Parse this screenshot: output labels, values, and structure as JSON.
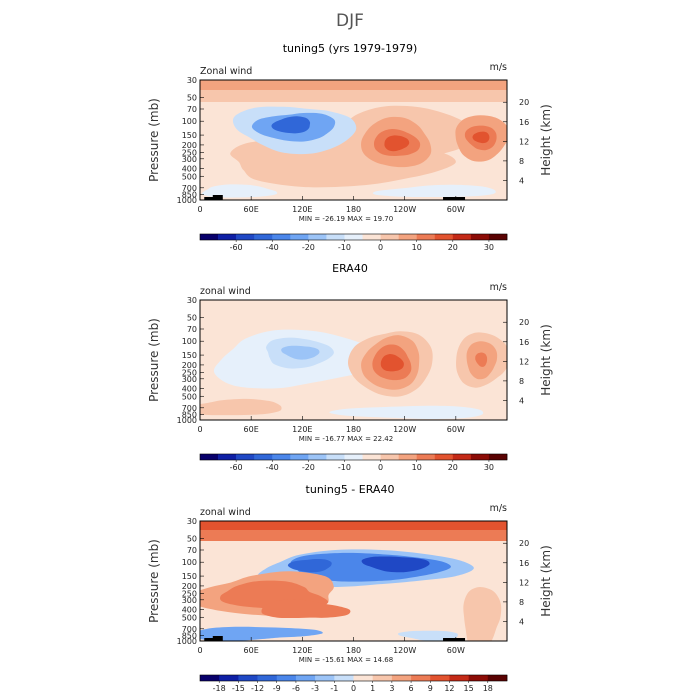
{
  "figure": {
    "title": "DJF"
  },
  "chart_data": [
    {
      "type": "heatmap",
      "title": "tuning5 (yrs 1979-1979)",
      "left_label": "Zonal wind",
      "units": "m/s",
      "ylabel": "Pressure (mb)",
      "ylabel_right": "Height (km)",
      "x_tick_labels": [
        "0",
        "60E",
        "120E",
        "180",
        "120W",
        "60W"
      ],
      "x_tick_positions_deg": [
        0,
        60,
        120,
        180,
        240,
        300
      ],
      "xlim": [
        0,
        360
      ],
      "y_tick_labels": [
        "30",
        "50",
        "70",
        "100",
        "150",
        "200",
        "250",
        "300",
        "400",
        "500",
        "700",
        "850",
        "1000"
      ],
      "y_tick_values": [
        30,
        50,
        70,
        100,
        150,
        200,
        250,
        300,
        400,
        500,
        700,
        850,
        1000
      ],
      "ylim": [
        1000,
        30
      ],
      "y_scale": "log",
      "height_tick_labels": [
        "4",
        "8",
        "12",
        "16",
        "20"
      ],
      "height_tick_values_km": [
        4,
        8,
        12,
        16,
        20
      ],
      "stats_label": "MIN = -26.19   MAX =  19.70",
      "min": -26.19,
      "max": 19.7,
      "colorbar_levels": [
        -70,
        -60,
        -50,
        -40,
        -30,
        -20,
        -15,
        -10,
        -5,
        0,
        5,
        10,
        15,
        20,
        25,
        30
      ],
      "colorbar_labels": [
        "-60",
        "-40",
        "-20",
        "-10",
        "0",
        "10",
        "20",
        "30"
      ],
      "colors": [
        "#08006b",
        "#0e1fa5",
        "#1f48c5",
        "#3067d8",
        "#4b86ea",
        "#6fa5f3",
        "#9cc4f7",
        "#c8dff9",
        "#e6f0fb",
        "#fbe4d6",
        "#f7c6ac",
        "#f3a37f",
        "#ec7b55",
        "#e2532f",
        "#c42a17",
        "#8c0c06",
        "#5a0202"
      ],
      "features": [
        {
          "name": "stratosphere-westerly",
          "lon": [
            0,
            360
          ],
          "p": [
            30,
            55
          ],
          "value": 12
        },
        {
          "name": "upper-easterly-jet",
          "lon": 110,
          "p": 110,
          "value": -26.19
        },
        {
          "name": "pacific-jet",
          "lon": 225,
          "p": 190,
          "value": 19.7
        },
        {
          "name": "atlantic-jet",
          "lon": 330,
          "p": 160,
          "value": 14
        }
      ]
    },
    {
      "type": "heatmap",
      "title": "ERA40",
      "left_label": "zonal wind",
      "units": "m/s",
      "ylabel": "Pressure (mb)",
      "ylabel_right": "Height (km)",
      "x_tick_labels": [
        "0",
        "60E",
        "120E",
        "180",
        "120W",
        "60W"
      ],
      "x_tick_positions_deg": [
        0,
        60,
        120,
        180,
        240,
        300
      ],
      "xlim": [
        0,
        360
      ],
      "y_tick_labels": [
        "30",
        "50",
        "70",
        "100",
        "150",
        "200",
        "250",
        "300",
        "400",
        "500",
        "700",
        "850",
        "1000"
      ],
      "y_tick_values": [
        30,
        50,
        70,
        100,
        150,
        200,
        250,
        300,
        400,
        500,
        700,
        850,
        1000
      ],
      "ylim": [
        1000,
        30
      ],
      "y_scale": "log",
      "height_tick_labels": [
        "4",
        "8",
        "12",
        "16",
        "20"
      ],
      "height_tick_values_km": [
        4,
        8,
        12,
        16,
        20
      ],
      "stats_label": "MIN = -16.77   MAX =  22.42",
      "min": -16.77,
      "max": 22.42,
      "colorbar_levels": [
        -70,
        -60,
        -50,
        -40,
        -30,
        -20,
        -15,
        -10,
        -5,
        0,
        5,
        10,
        15,
        20,
        25,
        30
      ],
      "colorbar_labels": [
        "-60",
        "-40",
        "-20",
        "-10",
        "0",
        "10",
        "20",
        "30"
      ],
      "colors": [
        "#08006b",
        "#0e1fa5",
        "#1f48c5",
        "#3067d8",
        "#4b86ea",
        "#6fa5f3",
        "#9cc4f7",
        "#c8dff9",
        "#e6f0fb",
        "#fbe4d6",
        "#f7c6ac",
        "#f3a37f",
        "#ec7b55",
        "#e2532f",
        "#c42a17",
        "#8c0c06",
        "#5a0202"
      ],
      "features": [
        {
          "name": "upper-easterly",
          "lon": 115,
          "p": 140,
          "value": -16.77
        },
        {
          "name": "pacific-jet",
          "lon": 225,
          "p": 190,
          "value": 22.42
        },
        {
          "name": "atlantic-jet",
          "lon": 330,
          "p": 170,
          "value": 15
        }
      ]
    },
    {
      "type": "heatmap",
      "title": "tuning5 - ERA40",
      "left_label": "zonal wind",
      "units": "m/s",
      "ylabel": "Pressure (mb)",
      "ylabel_right": "Height (km)",
      "x_tick_labels": [
        "0",
        "60E",
        "120E",
        "180",
        "120W",
        "60W"
      ],
      "x_tick_positions_deg": [
        0,
        60,
        120,
        180,
        240,
        300
      ],
      "xlim": [
        0,
        360
      ],
      "y_tick_labels": [
        "30",
        "50",
        "70",
        "100",
        "150",
        "200",
        "250",
        "300",
        "400",
        "500",
        "700",
        "850",
        "1000"
      ],
      "y_tick_values": [
        30,
        50,
        70,
        100,
        150,
        200,
        250,
        300,
        400,
        500,
        700,
        850,
        1000
      ],
      "ylim": [
        1000,
        30
      ],
      "y_scale": "log",
      "height_tick_labels": [
        "4",
        "8",
        "12",
        "16",
        "20"
      ],
      "height_tick_values_km": [
        4,
        8,
        12,
        16,
        20
      ],
      "stats_label": "MIN = -15.61   MAX =  14.68",
      "min": -15.61,
      "max": 14.68,
      "colorbar_levels": [
        -18,
        -15,
        -12,
        -9,
        -6,
        -3,
        -1,
        0,
        1,
        3,
        6,
        9,
        12,
        15,
        18
      ],
      "colorbar_labels": [
        "-18",
        "-15",
        "-12",
        "-9",
        "-6",
        "-3",
        "-1",
        "0",
        "1",
        "3",
        "6",
        "9",
        "12",
        "15",
        "18"
      ],
      "colors": [
        "#08006b",
        "#0e1fa5",
        "#1f48c5",
        "#3067d8",
        "#4b86ea",
        "#6fa5f3",
        "#9cc4f7",
        "#c8dff9",
        "#fbe4d6",
        "#f7c6ac",
        "#f3a37f",
        "#ec7b55",
        "#e2532f",
        "#c42a17",
        "#8c0c06",
        "#5a0202"
      ],
      "features": [
        {
          "name": "stratosphere-positive",
          "lon": [
            0,
            360
          ],
          "p": [
            30,
            60
          ],
          "value": 14.68
        },
        {
          "name": "upper-negative-band",
          "lon": [
            90,
            290
          ],
          "p": [
            80,
            160
          ],
          "value": -15.61
        },
        {
          "name": "midlevel-positive-band",
          "lon": [
            20,
            150
          ],
          "p": [
            180,
            450
          ],
          "value": 12
        }
      ]
    }
  ]
}
